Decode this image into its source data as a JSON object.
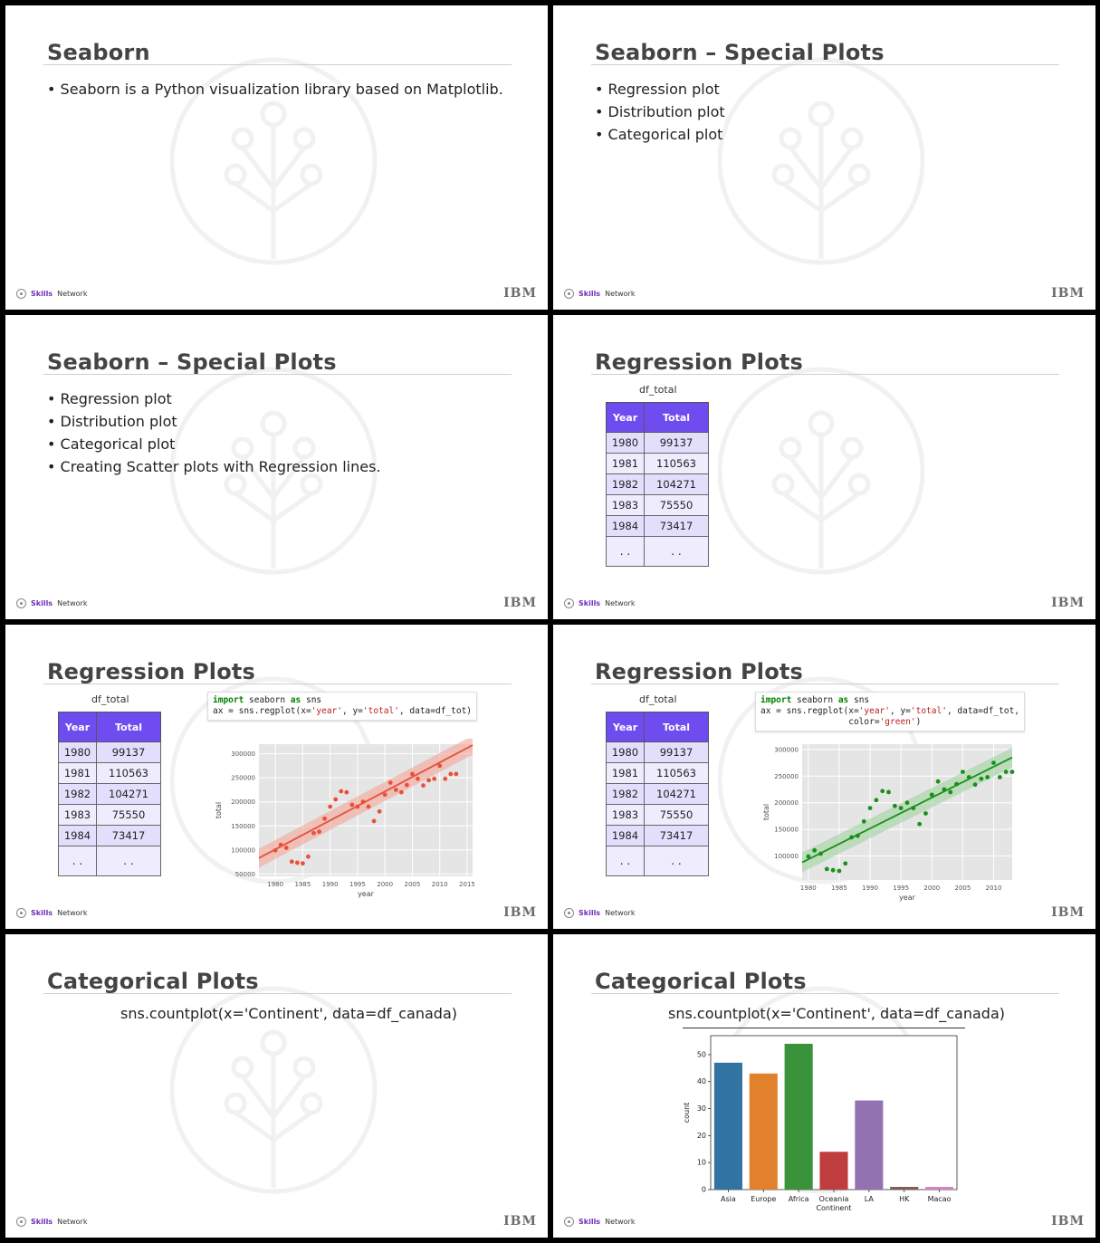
{
  "footer": {
    "brand_bold": "Skills",
    "brand_rest": "Network",
    "ibm": "IBM"
  },
  "slides": {
    "s1": {
      "title": "Seaborn",
      "bullets": [
        "Seaborn is a Python visualization library based on Matplotlib."
      ]
    },
    "s2": {
      "title": "Seaborn – Special Plots",
      "bullets": [
        "Regression plot",
        "Distribution plot",
        "Categorical plot"
      ]
    },
    "s3": {
      "title": "Seaborn – Special Plots",
      "bullets": [
        "Regression plot",
        "Distribution plot",
        "Categorical plot",
        "Creating Scatter plots with Regression lines."
      ]
    },
    "s4": {
      "title": "Regression Plots"
    },
    "s5": {
      "title": "Regression Plots"
    },
    "s6": {
      "title": "Regression Plots"
    },
    "s7": {
      "title": "Categorical Plots",
      "code": "sns.countplot(x='Continent', data=df_canada)"
    },
    "s8": {
      "title": "Categorical Plots",
      "code": "sns.countplot(x='Continent', data=df_canada)"
    }
  },
  "df_table": {
    "caption": "df_total",
    "headers": [
      "Year",
      "Total"
    ],
    "rows": [
      [
        "1980",
        "99137"
      ],
      [
        "1981",
        "110563"
      ],
      [
        "1982",
        "104271"
      ],
      [
        "1983",
        "75550"
      ],
      [
        "1984",
        "73417"
      ]
    ],
    "ellipsis": ". ."
  },
  "code_red": {
    "l1_kw1": "import",
    "l1_mid": " seaborn ",
    "l1_kw2": "as",
    "l1_end": " sns",
    "l2_a": "ax = sns.regplot(x=",
    "l2_s1": "'year'",
    "l2_b": ", y=",
    "l2_s2": "'total'",
    "l2_c": ", data=df_tot)"
  },
  "code_green": {
    "l1_kw1": "import",
    "l1_mid": " seaborn ",
    "l1_kw2": "as",
    "l1_end": " sns",
    "l2_a": "ax = sns.regplot(x=",
    "l2_s1": "'year'",
    "l2_b": ", y=",
    "l2_s2": "'total'",
    "l2_c": ", data=df_tot,",
    "l3_a": "                 color=",
    "l3_s": "'green'",
    "l3_c": ")"
  },
  "chart_data": [
    {
      "type": "scatter",
      "id": "reg-red",
      "xlabel": "year",
      "ylabel": "total",
      "xlim": [
        1977,
        2016
      ],
      "ylim": [
        45000,
        320000
      ],
      "xticks": [
        1980,
        1985,
        1990,
        1995,
        2000,
        2005,
        2010,
        2015
      ],
      "yticks": [
        50000,
        100000,
        150000,
        200000,
        250000,
        300000
      ],
      "color": "#e8503c",
      "band_color": "#f4a596",
      "x": [
        1980,
        1981,
        1982,
        1983,
        1984,
        1985,
        1986,
        1987,
        1988,
        1989,
        1990,
        1991,
        1992,
        1993,
        1994,
        1995,
        1996,
        1997,
        1998,
        1999,
        2000,
        2001,
        2002,
        2003,
        2004,
        2005,
        2006,
        2007,
        2008,
        2009,
        2010,
        2011,
        2012,
        2013
      ],
      "y": [
        99137,
        110563,
        104271,
        75550,
        73417,
        72000,
        86000,
        135000,
        138000,
        165000,
        190000,
        205000,
        222000,
        220000,
        194000,
        190000,
        200000,
        190000,
        160000,
        180000,
        215000,
        240000,
        225000,
        220000,
        235000,
        258000,
        248000,
        234000,
        245000,
        248000,
        275000,
        248000,
        258000,
        258000
      ],
      "trend": {
        "x": [
          1977,
          2016
        ],
        "y": [
          83000,
          318000
        ]
      }
    },
    {
      "type": "scatter",
      "id": "reg-green",
      "xlabel": "year",
      "ylabel": "total",
      "xlim": [
        1979,
        2013
      ],
      "ylim": [
        55000,
        310000
      ],
      "xticks": [
        1980,
        1985,
        1990,
        1995,
        2000,
        2005,
        2010
      ],
      "yticks": [
        100000,
        150000,
        200000,
        250000,
        300000
      ],
      "color": "#1a8f1a",
      "band_color": "#9fd39f",
      "x": [
        1980,
        1981,
        1982,
        1983,
        1984,
        1985,
        1986,
        1987,
        1988,
        1989,
        1990,
        1991,
        1992,
        1993,
        1994,
        1995,
        1996,
        1997,
        1998,
        1999,
        2000,
        2001,
        2002,
        2003,
        2004,
        2005,
        2006,
        2007,
        2008,
        2009,
        2010,
        2011,
        2012,
        2013
      ],
      "y": [
        99137,
        110563,
        104271,
        75550,
        73417,
        72000,
        86000,
        135000,
        138000,
        165000,
        190000,
        205000,
        222000,
        220000,
        194000,
        190000,
        200000,
        190000,
        160000,
        180000,
        215000,
        240000,
        225000,
        220000,
        235000,
        258000,
        248000,
        234000,
        245000,
        248000,
        275000,
        248000,
        258000,
        258000
      ],
      "trend": {
        "x": [
          1979,
          2013
        ],
        "y": [
          88000,
          285000
        ]
      }
    },
    {
      "type": "bar",
      "id": "countplot",
      "categories": [
        "Asia",
        "Europe",
        "Africa",
        "Oceania",
        "LA",
        "HK",
        "Macao"
      ],
      "category_label_lines": [
        [
          "Asia"
        ],
        [
          "Europe"
        ],
        [
          "Africa"
        ],
        [
          "Oceania",
          "Continent"
        ],
        [
          "LA"
        ],
        [
          "HK"
        ],
        [
          "Macao"
        ]
      ],
      "values": [
        47,
        43,
        54,
        14,
        33,
        1,
        1
      ],
      "colors": [
        "#3274a1",
        "#e1812c",
        "#3a923a",
        "#c03d3e",
        "#9372b2",
        "#845b53",
        "#d684bd"
      ],
      "ylabel": "count",
      "xlabel": "Continent",
      "ylim": [
        0,
        57
      ],
      "yticks": [
        0,
        10,
        20,
        30,
        40,
        50
      ]
    }
  ]
}
